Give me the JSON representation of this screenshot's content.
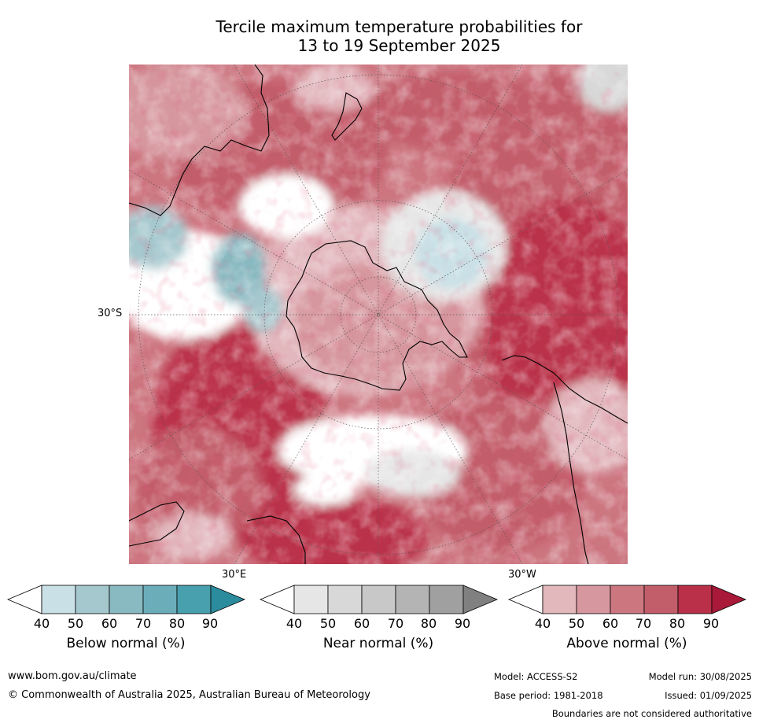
{
  "title": {
    "line1": "Tercile maximum temperature probabilities for",
    "line2": "13 to 19 September 2025"
  },
  "map": {
    "lat_label": "30°S",
    "lon_label_east": "30°E",
    "lon_label_west": "30°W"
  },
  "legends": [
    {
      "title": "Below normal (%)",
      "ticks": [
        "40",
        "50",
        "60",
        "70",
        "80",
        "90"
      ],
      "colors": [
        "#ffffff",
        "#c8e0e6",
        "#a5c8ce",
        "#89b9c1",
        "#6baeba",
        "#48a0ae",
        "#2b8c9e"
      ]
    },
    {
      "title": "Near normal (%)",
      "ticks": [
        "40",
        "50",
        "60",
        "70",
        "80",
        "90"
      ],
      "colors": [
        "#ffffff",
        "#e6e6e6",
        "#d8d8d8",
        "#c8c8c8",
        "#b4b4b4",
        "#a0a0a0",
        "#808080"
      ]
    },
    {
      "title": "Above normal (%)",
      "ticks": [
        "40",
        "50",
        "60",
        "70",
        "80",
        "90"
      ],
      "colors": [
        "#ffffff",
        "#e2b8bd",
        "#d6979e",
        "#cc7680",
        "#c25d6a",
        "#b93048",
        "#a8193a"
      ]
    }
  ],
  "footer": {
    "website": "www.bom.gov.au/climate",
    "copyright": "© Commonwealth of Australia 2025, Australian Bureau of Meteorology",
    "model": "Model: ACCESS-S2",
    "model_run": "Model run: 30/08/2025",
    "base_period": "Base period: 1981-2018",
    "issued": "Issued: 01/09/2025",
    "disclaimer": "Boundaries are not considered authoritative"
  }
}
